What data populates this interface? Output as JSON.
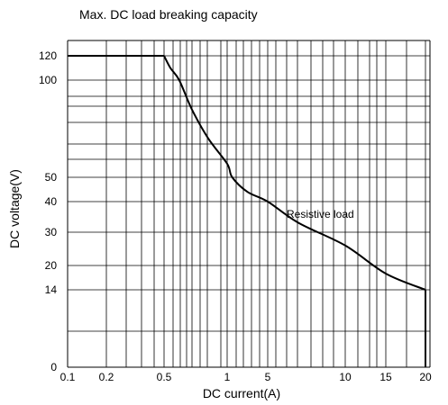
{
  "chart_data": {
    "type": "line",
    "title": "Max. DC load breaking capacity",
    "xlabel": "DC current(A)",
    "ylabel": "DC voltage(V)",
    "x_ticks": [
      "0.1",
      "0.2",
      "0.5",
      "1",
      "5",
      "10",
      "15",
      "20"
    ],
    "y_ticks": [
      "0",
      "14",
      "20",
      "30",
      "40",
      "50",
      "100",
      "120"
    ],
    "grid": true,
    "annotation": "Resistive load",
    "series": [
      {
        "name": "Resistive load",
        "points": [
          {
            "x": 0.1,
            "y": 120
          },
          {
            "x": 0.5,
            "y": 120
          },
          {
            "x": 0.55,
            "y": 110
          },
          {
            "x": 0.62,
            "y": 100
          },
          {
            "x": 0.72,
            "y": 85
          },
          {
            "x": 0.85,
            "y": 70
          },
          {
            "x": 1,
            "y": 57
          },
          {
            "x": 1.5,
            "y": 50
          },
          {
            "x": 3,
            "y": 44
          },
          {
            "x": 5,
            "y": 40
          },
          {
            "x": 7,
            "y": 33
          },
          {
            "x": 10,
            "y": 26
          },
          {
            "x": 15,
            "y": 18
          },
          {
            "x": 20,
            "y": 14
          },
          {
            "x": 20,
            "y": 0
          }
        ]
      }
    ]
  }
}
